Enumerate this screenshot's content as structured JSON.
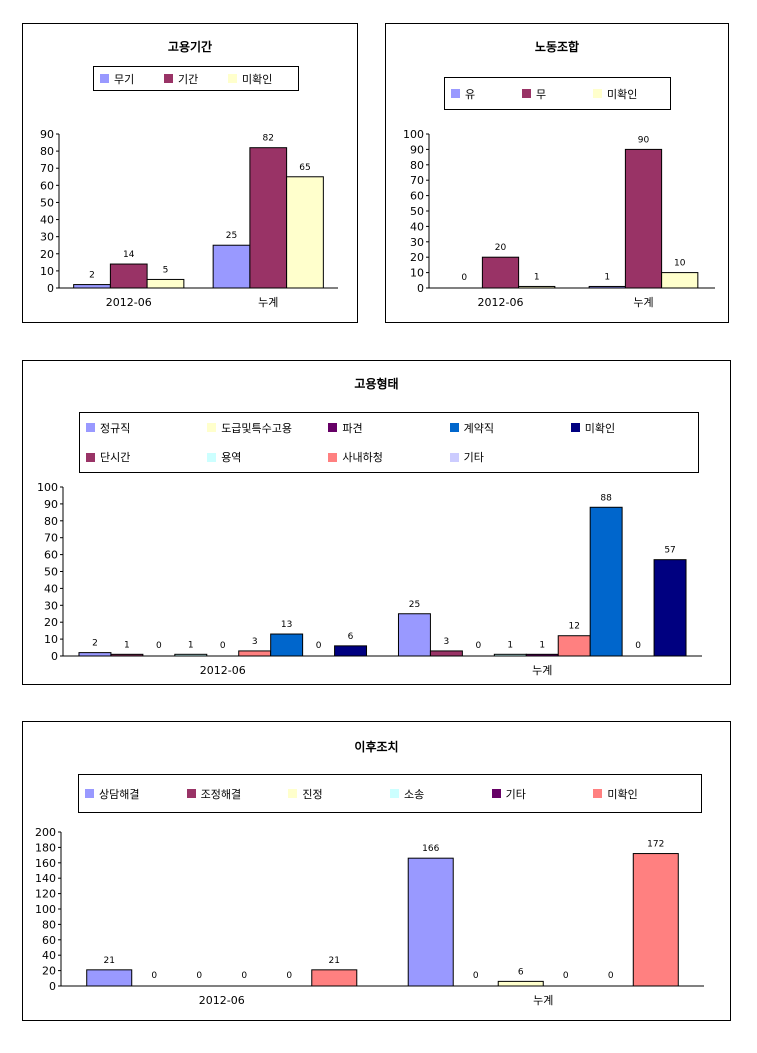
{
  "chart_data": [
    {
      "type": "bar",
      "title": "고용기간",
      "categories": [
        "2012-06",
        "누계"
      ],
      "ylim": [
        0,
        90
      ],
      "yticks": [
        0,
        10,
        20,
        30,
        40,
        50,
        60,
        70,
        80,
        90
      ],
      "legend_placement": "top",
      "grid": false,
      "series": [
        {
          "name": "무기",
          "color": "#9999FF",
          "values": [
            2,
            25
          ]
        },
        {
          "name": "기간",
          "color": "#993366",
          "values": [
            14,
            82
          ]
        },
        {
          "name": "미확인",
          "color": "#FFFFCC",
          "values": [
            5,
            65
          ]
        }
      ]
    },
    {
      "type": "bar",
      "title": "노동조합",
      "categories": [
        "2012-06",
        "누계"
      ],
      "ylim": [
        0,
        100
      ],
      "yticks": [
        0,
        10,
        20,
        30,
        40,
        50,
        60,
        70,
        80,
        90,
        100
      ],
      "legend_placement": "top",
      "grid": false,
      "series": [
        {
          "name": "유",
          "color": "#9999FF",
          "values": [
            0,
            1
          ]
        },
        {
          "name": "무",
          "color": "#993366",
          "values": [
            20,
            90
          ]
        },
        {
          "name": "미확인",
          "color": "#FFFFCC",
          "values": [
            1,
            10
          ]
        }
      ]
    },
    {
      "type": "bar",
      "title": "고용형태",
      "categories": [
        "2012-06",
        "누계"
      ],
      "ylim": [
        0,
        100
      ],
      "yticks": [
        0,
        10,
        20,
        30,
        40,
        50,
        60,
        70,
        80,
        90,
        100
      ],
      "legend_placement": "top",
      "grid": false,
      "series": [
        {
          "name": "정규직",
          "color": "#9999FF",
          "values": [
            2,
            25
          ]
        },
        {
          "name": "단시간",
          "color": "#993366",
          "values": [
            1,
            3
          ]
        },
        {
          "name": "도급및특수고용",
          "color": "#FFFFCC",
          "values": [
            0,
            0
          ]
        },
        {
          "name": "용역",
          "color": "#CCFFFF",
          "values": [
            1,
            1
          ]
        },
        {
          "name": "파견",
          "color": "#660066",
          "values": [
            0,
            1
          ]
        },
        {
          "name": "사내하청",
          "color": "#FF8080",
          "values": [
            3,
            12
          ]
        },
        {
          "name": "계약직",
          "color": "#0066CC",
          "values": [
            13,
            88
          ]
        },
        {
          "name": "기타",
          "color": "#CCCCFF",
          "values": [
            0,
            0
          ]
        },
        {
          "name": "미확인",
          "color": "#000080",
          "values": [
            6,
            57
          ]
        }
      ]
    },
    {
      "type": "bar",
      "title": "이후조치",
      "categories": [
        "2012-06",
        "누계"
      ],
      "ylim": [
        0,
        200
      ],
      "yticks": [
        0,
        20,
        40,
        60,
        80,
        100,
        120,
        140,
        160,
        180,
        200
      ],
      "legend_placement": "top",
      "grid": false,
      "series": [
        {
          "name": "상담해결",
          "color": "#9999FF",
          "values": [
            21,
            166
          ]
        },
        {
          "name": "조정해결",
          "color": "#993366",
          "values": [
            0,
            0
          ]
        },
        {
          "name": "진정",
          "color": "#FFFFCC",
          "values": [
            0,
            6
          ]
        },
        {
          "name": "소송",
          "color": "#CCFFFF",
          "values": [
            0,
            0
          ]
        },
        {
          "name": "기타",
          "color": "#660066",
          "values": [
            0,
            0
          ]
        },
        {
          "name": "미확인",
          "color": "#FF8080",
          "values": [
            21,
            172
          ]
        }
      ]
    }
  ]
}
